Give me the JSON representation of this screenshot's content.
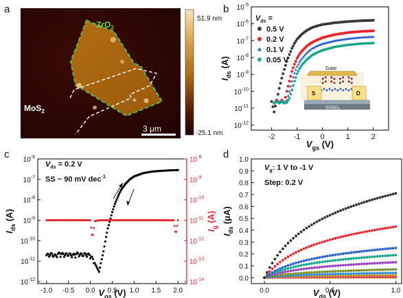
{
  "panels": {
    "a": {
      "letter": "a",
      "flake_top": {
        "text": "ZrO",
        "sub": "2"
      },
      "flake_bottom": {
        "text": "MoS",
        "sub": "2"
      },
      "scalebar_label": "3 μm",
      "colorbar_max": "51.9 nm",
      "colorbar_min": "-25.1 nm",
      "colors": {
        "flake_outline": "#5fb04a",
        "mos2_outline": "#ffffff",
        "bg_dark": "#2a0503",
        "flake_fill": "#a8660f"
      }
    },
    "b": {
      "letter": "b",
      "legend_title": {
        "pre": "V",
        "sub": "ds",
        "post": " ="
      },
      "inset": {
        "gate": "Gate",
        "source": "S",
        "drain": "D",
        "substrate": "Si/SiO",
        "substrate_sub": "2"
      }
    },
    "c": {
      "letter": "c",
      "vds_note": {
        "pre": "V",
        "sub": "ds",
        "post": " = 0.2 V"
      },
      "ss_note": {
        "pre": "SS ~ 90 mV dec",
        "sup": "-1"
      }
    },
    "d": {
      "letter": "d",
      "note1": {
        "pre": "V",
        "sub": "g",
        "post": ": 1 V to -1 V"
      },
      "note2": "Step: 0.2 V"
    }
  },
  "chart_data": [
    {
      "panel": "b",
      "type": "scatter",
      "xlabel": {
        "main": "V",
        "sub": "gs",
        "unit": " (V)"
      },
      "ylabel": {
        "main": "I",
        "sub": "ds",
        "unit": " (A)"
      },
      "x_ticks": [
        -2,
        -1,
        0,
        1,
        2
      ],
      "y_ticks": [
        {
          "m": "10",
          "e": "-5"
        },
        {
          "m": "10",
          "e": "-6"
        },
        {
          "m": "10",
          "e": "-7"
        },
        {
          "m": "10",
          "e": "-8"
        },
        {
          "m": "10",
          "e": "-9"
        },
        {
          "m": "10",
          "e": "-10"
        },
        {
          "m": "10",
          "e": "-11"
        },
        {
          "m": "10",
          "e": "-12"
        }
      ],
      "xlim": [
        -2.8,
        2.6
      ],
      "ylim_log10": [
        -12.3,
        -5
      ],
      "yscale": "log",
      "series": [
        {
          "name": "0.5 V",
          "color": "#3a3a3a",
          "marker": "circle",
          "x": [
            -2.0,
            -1.9,
            -1.8,
            -1.7,
            -1.6,
            -1.5,
            -1.4,
            -1.3,
            -1.2,
            -1.1,
            -1.0,
            -0.8,
            -0.6,
            -0.4,
            -0.2,
            0.0,
            0.5,
            1.0,
            1.5,
            2.0
          ],
          "y": [
            2.5e-11,
            6e-12,
            3e-11,
            1.5e-10,
            6e-10,
            2e-09,
            6e-09,
            1.5e-08,
            3.5e-08,
            7e-08,
            1.2e-07,
            2.5e-07,
            4.2e-07,
            6e-07,
            7.5e-07,
            9e-07,
            1.15e-06,
            1.35e-06,
            1.5e-06,
            1.6e-06
          ]
        },
        {
          "name": "0.2 V",
          "color": "#e8262d",
          "marker": "circle",
          "x": [
            -1.9,
            -1.8,
            -1.7,
            -1.6,
            -1.5,
            -1.4,
            -1.3,
            -1.2,
            -1.1,
            -1.0,
            -0.9,
            -0.8,
            -0.6,
            -0.4,
            -0.2,
            0.0,
            0.5,
            1.0,
            1.5,
            2.0
          ],
          "y": [
            2e-11,
            3e-11,
            2e-11,
            3e-11,
            2e-11,
            1e-10,
            4e-10,
            1.5e-09,
            4e-09,
            9e-09,
            1.6e-08,
            2.5e-08,
            5e-08,
            8e-08,
            1.1e-07,
            1.5e-07,
            2.3e-07,
            3e-07,
            3.5e-07,
            3.8e-07
          ]
        },
        {
          "name": "0.1 V",
          "color": "#2a5fcb",
          "marker": "triangle",
          "x": [
            -1.9,
            -1.8,
            -1.7,
            -1.6,
            -1.5,
            -1.4,
            -1.3,
            -1.2,
            -1.1,
            -1.0,
            -0.9,
            -0.8,
            -0.6,
            -0.4,
            -0.2,
            0.0,
            0.5,
            1.0,
            1.5,
            2.0
          ],
          "y": [
            2e-11,
            3e-11,
            2e-11,
            2.5e-11,
            2e-11,
            3e-11,
            1e-10,
            4e-10,
            1.2e-09,
            3e-09,
            5.5e-09,
            9e-09,
            2e-08,
            3.5e-08,
            5e-08,
            6.5e-08,
            1e-07,
            1.3e-07,
            1.55e-07,
            1.7e-07
          ]
        },
        {
          "name": "0.05 V",
          "color": "#14a68a",
          "marker": "square",
          "x": [
            -1.9,
            -1.8,
            -1.7,
            -1.6,
            -1.5,
            -1.4,
            -1.3,
            -1.2,
            -1.1,
            -1.0,
            -0.9,
            -0.8,
            -0.6,
            -0.4,
            -0.2,
            0.0,
            0.5,
            1.0,
            1.5,
            2.0
          ],
          "y": [
            2e-11,
            2.5e-11,
            2e-11,
            2.5e-11,
            2e-11,
            2.2e-11,
            4e-11,
            1.2e-10,
            4e-10,
            1.1e-09,
            2.2e-09,
            3.8e-09,
            8e-09,
            1.4e-08,
            2e-08,
            2.7e-08,
            4.3e-08,
            5.6e-08,
            6.6e-08,
            7.2e-08
          ]
        }
      ]
    },
    {
      "panel": "c",
      "type": "scatter",
      "xlabel": {
        "main": "V",
        "sub": "gs",
        "unit": " (V)"
      },
      "ylabel": {
        "main": "I",
        "sub": "ds",
        "unit": " (A)"
      },
      "y2label": {
        "main": "I",
        "sub": "g",
        "unit": " (A)"
      },
      "x_ticks": [
        -1.0,
        -0.5,
        0.0,
        0.5,
        1.0,
        1.5,
        2.0
      ],
      "x_tick_labels": [
        "-1.0",
        "-0.5",
        "0.0",
        "0.5",
        "1.0",
        "1.5",
        "2.0"
      ],
      "y_ticks": [
        {
          "m": "10",
          "e": "-6"
        },
        {
          "m": "10",
          "e": "-7"
        },
        {
          "m": "10",
          "e": "-8"
        },
        {
          "m": "10",
          "e": "-9"
        },
        {
          "m": "10",
          "e": "-10"
        },
        {
          "m": "10",
          "e": "-11"
        },
        {
          "m": "10",
          "e": "-12"
        }
      ],
      "y2_ticks": [
        {
          "m": "10",
          "e": "-8"
        },
        {
          "m": "10",
          "e": "-9"
        },
        {
          "m": "10",
          "e": "-10"
        },
        {
          "m": "10",
          "e": "-11"
        },
        {
          "m": "10",
          "e": "-12"
        },
        {
          "m": "10",
          "e": "-13"
        },
        {
          "m": "10",
          "e": "-14"
        }
      ],
      "xlim": [
        -1.2,
        2.2
      ],
      "ylim_log10": [
        -12.1,
        -6
      ],
      "y2lim_log10": [
        -14.1,
        -8
      ],
      "yscale": "log",
      "series": [
        {
          "name": "I_ds",
          "axis": "left",
          "color": "#000000",
          "marker": "square",
          "x": [
            -1.0,
            -0.9,
            -0.8,
            -0.7,
            -0.6,
            -0.5,
            -0.4,
            -0.3,
            -0.2,
            -0.1,
            0.0,
            0.1,
            0.2,
            0.25,
            0.3,
            0.35,
            0.4,
            0.45,
            0.5,
            0.55,
            0.6,
            0.65,
            0.7,
            0.8,
            0.9,
            1.0,
            1.2,
            1.4,
            1.6,
            1.8,
            2.0
          ],
          "y": [
            1.8e-11,
            2e-11,
            1.7e-11,
            2.2e-11,
            1.9e-11,
            2e-11,
            1.8e-11,
            2.1e-11,
            1.9e-11,
            2e-11,
            1.8e-11,
            8e-12,
            3e-12,
            1e-11,
            3e-11,
            1.2e-10,
            4e-10,
            1e-09,
            2.5e-09,
            5.5e-09,
            1e-08,
            1.8e-08,
            3e-08,
            6e-08,
            1e-07,
            1.4e-07,
            2e-07,
            2.4e-07,
            2.6e-07,
            2.75e-07,
            2.85e-07
          ]
        },
        {
          "name": "I_g",
          "axis": "right",
          "color": "#e8262d",
          "marker": "square",
          "x": [
            -1.0,
            -0.9,
            -0.8,
            -0.7,
            -0.6,
            -0.5,
            -0.4,
            -0.3,
            -0.2,
            -0.1,
            0.0,
            0.05,
            0.1,
            0.2,
            0.4,
            0.6,
            0.8,
            1.0,
            1.2,
            1.4,
            1.6,
            1.7,
            1.8,
            1.9,
            1.95,
            2.0
          ],
          "y": [
            1e-11,
            1e-11,
            1e-11,
            1e-11,
            1e-11,
            1e-11,
            1e-11,
            1e-11,
            1e-11,
            1e-11,
            1e-11,
            1.3e-12,
            9e-12,
            1e-11,
            1e-11,
            1e-11,
            1e-11,
            1e-11,
            1e-11,
            1e-11,
            1e-11,
            1e-11,
            1e-11,
            1e-11,
            2e-12,
            1e-11
          ]
        }
      ]
    },
    {
      "panel": "d",
      "type": "line",
      "xlabel": {
        "main": "V",
        "sub": "ds",
        "unit": " (V)"
      },
      "ylabel": {
        "main": "I",
        "sub": "ds",
        "unit": " (μA)"
      },
      "x_ticks": [
        0.0,
        0.5,
        1.0
      ],
      "x_tick_labels": [
        "0.0",
        "0.5",
        "1.0"
      ],
      "y_ticks": [
        0.0,
        0.1,
        0.2,
        0.3,
        0.4,
        0.5,
        0.6,
        0.7,
        0.8,
        0.9,
        1.0
      ],
      "y_tick_labels": [
        "0.0",
        "0.1",
        "0.2",
        "0.3",
        "0.4",
        "0.5",
        "0.6",
        "0.7",
        "0.8",
        "0.9",
        "1.0"
      ],
      "xlim": [
        -0.1,
        1.05
      ],
      "ylim": [
        -0.05,
        1.0
      ],
      "series": [
        {
          "Vg": 1.0,
          "color": "#303030",
          "saturation": 0.71
        },
        {
          "Vg": 0.8,
          "color": "#e8262d",
          "saturation": 0.43
        },
        {
          "Vg": 0.6,
          "color": "#2a5fcb",
          "saturation": 0.25
        },
        {
          "Vg": 0.4,
          "color": "#14a68a",
          "saturation": 0.19
        },
        {
          "Vg": 0.2,
          "color": "#9b3fc0",
          "saturation": 0.13
        },
        {
          "Vg": 0.0,
          "color": "#7a8c2e",
          "saturation": 0.07
        },
        {
          "Vg": -0.2,
          "color": "#2e8fd4",
          "saturation": 0.04
        },
        {
          "Vg": -0.4,
          "color": "#d48a26",
          "saturation": 0.02
        },
        {
          "Vg": -0.6,
          "color": "#c03a7a",
          "saturation": 0.01
        },
        {
          "Vg": -0.8,
          "color": "#e05a2a",
          "saturation": 0.005
        },
        {
          "Vg": -1.0,
          "color": "#d4b41e",
          "saturation": 0.002
        }
      ]
    }
  ]
}
